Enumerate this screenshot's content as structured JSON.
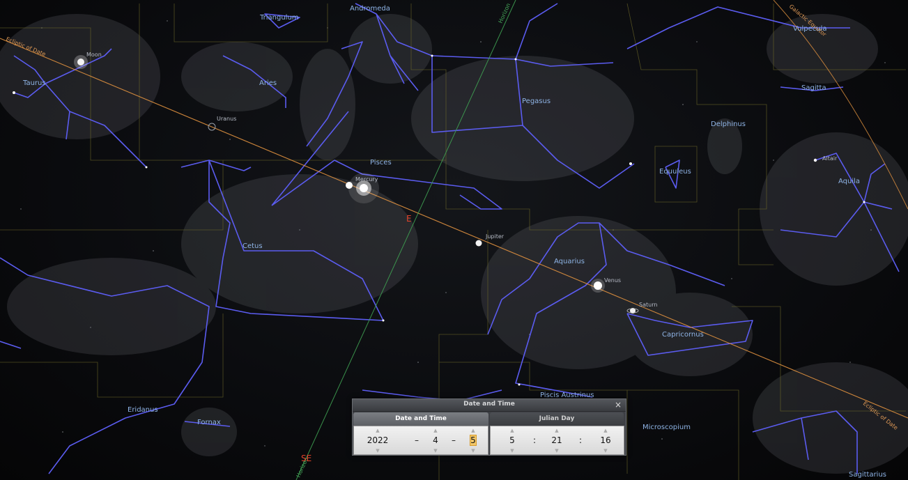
{
  "constellations": [
    "Triangulum",
    "Andromeda",
    "Taurus",
    "Aries",
    "Pegasus",
    "Pisces",
    "Delphinus",
    "Equuleus",
    "Aquila",
    "Vulpecula",
    "Sagitta",
    "Cetus",
    "Aquarius",
    "Capricornus",
    "Piscis Austrinus",
    "Eridanus",
    "Fornax",
    "Microscopium",
    "Sagittarius"
  ],
  "planets": {
    "moon": "Moon",
    "uranus": "Uranus",
    "mercury": "Mercury",
    "jupiter": "Jupiter",
    "venus": "Venus",
    "saturn": "Saturn",
    "altair": "Altair"
  },
  "lines": {
    "ecliptic_top": "Ecliptic of Date",
    "ecliptic_bottom": "Ecliptic of Date",
    "galactic": "Galactic Equator",
    "horizon_top": "Horizon",
    "horizon_bottom": "Horizon"
  },
  "cardinals": {
    "east": "E",
    "southeast": "SE"
  },
  "dialog": {
    "title": "Date and Time",
    "close_icon": "×",
    "tabs": {
      "date_and_time": "Date and Time",
      "julian_day": "Julian Day"
    },
    "active_tab": "Date and Time",
    "date": {
      "year": "2022",
      "month": "4",
      "day": "5",
      "separator": "–"
    },
    "time": {
      "hour": "5",
      "minute": "21",
      "second": "16",
      "separator": ":"
    },
    "spin_up": "▲",
    "spin_down": "▼"
  },
  "colors": {
    "constellation_lines": "#5b5cf0",
    "constellation_labels": "#8fb4e6",
    "ecliptic": "#e0913f",
    "horizon": "#3fa052",
    "boundaries": "#6f6a2a",
    "cardinal": "#e1432a",
    "highlight": "#f2c769"
  }
}
